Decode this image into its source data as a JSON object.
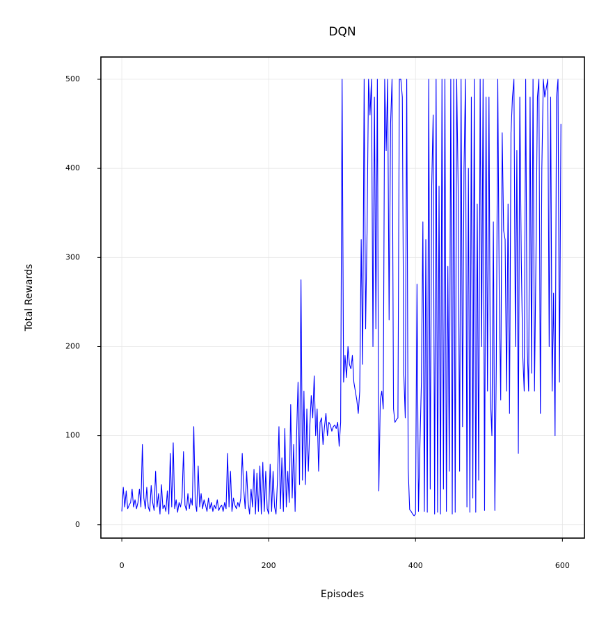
{
  "chart_data": {
    "type": "line",
    "title": "DQN",
    "x_label": "Episodes",
    "y_label": "Total Rewards",
    "color": "#0000ff",
    "grid": true,
    "xlim": [
      -28.5,
      630
    ],
    "ylim": [
      -15,
      525
    ],
    "xticks": [
      0,
      200,
      400,
      600
    ],
    "yticks": [
      0,
      100,
      200,
      300,
      400,
      500
    ],
    "x": [
      0,
      2,
      4,
      6,
      8,
      10,
      12,
      14,
      16,
      18,
      20,
      22,
      24,
      26,
      28,
      30,
      32,
      34,
      36,
      38,
      40,
      42,
      44,
      46,
      48,
      50,
      52,
      54,
      56,
      58,
      60,
      62,
      64,
      66,
      68,
      70,
      72,
      74,
      76,
      78,
      80,
      82,
      84,
      86,
      88,
      90,
      92,
      94,
      96,
      98,
      100,
      102,
      104,
      106,
      108,
      110,
      112,
      114,
      116,
      118,
      120,
      122,
      124,
      126,
      128,
      130,
      132,
      134,
      136,
      138,
      140,
      142,
      144,
      146,
      148,
      150,
      152,
      154,
      156,
      158,
      160,
      162,
      164,
      166,
      168,
      170,
      172,
      174,
      176,
      178,
      180,
      182,
      184,
      186,
      188,
      190,
      192,
      194,
      196,
      198,
      200,
      202,
      204,
      206,
      208,
      210,
      212,
      214,
      216,
      218,
      220,
      222,
      224,
      226,
      228,
      230,
      232,
      234,
      236,
      238,
      240,
      242,
      244,
      246,
      248,
      250,
      252,
      254,
      256,
      258,
      260,
      262,
      264,
      266,
      268,
      270,
      272,
      274,
      276,
      278,
      280,
      282,
      284,
      286,
      288,
      290,
      292,
      294,
      296,
      298,
      300,
      302,
      304,
      306,
      308,
      310,
      312,
      314,
      316,
      318,
      320,
      322,
      324,
      326,
      328,
      330,
      332,
      334,
      336,
      338,
      340,
      342,
      344,
      346,
      348,
      350,
      352,
      354,
      356,
      358,
      360,
      362,
      364,
      366,
      368,
      370,
      372,
      374,
      376,
      378,
      380,
      382,
      384,
      386,
      388,
      390,
      392,
      394,
      396,
      398,
      400,
      402,
      404,
      406,
      408,
      410,
      412,
      414,
      416,
      418,
      420,
      422,
      424,
      426,
      428,
      430,
      432,
      434,
      436,
      438,
      440,
      442,
      444,
      446,
      448,
      450,
      452,
      454,
      456,
      458,
      460,
      462,
      464,
      466,
      468,
      470,
      472,
      474,
      476,
      478,
      480,
      482,
      484,
      486,
      488,
      490,
      492,
      494,
      496,
      498,
      500,
      502,
      504,
      506,
      508,
      510,
      512,
      514,
      516,
      518,
      520,
      522,
      524,
      526,
      528,
      530,
      532,
      534,
      536,
      538,
      540,
      542,
      544,
      546,
      548,
      550,
      552,
      554,
      556,
      558,
      560,
      562,
      564,
      566,
      568,
      570,
      572,
      574,
      576,
      578,
      580,
      582,
      584,
      586,
      588,
      590,
      592,
      594,
      596,
      598
    ],
    "values": [
      15,
      42,
      20,
      38,
      18,
      22,
      25,
      40,
      20,
      28,
      18,
      25,
      40,
      20,
      90,
      30,
      18,
      42,
      20,
      15,
      44,
      25,
      16,
      60,
      20,
      35,
      12,
      45,
      18,
      22,
      15,
      38,
      12,
      80,
      20,
      92,
      18,
      28,
      14,
      25,
      20,
      30,
      82,
      22,
      16,
      35,
      18,
      30,
      22,
      110,
      25,
      15,
      66,
      20,
      35,
      18,
      28,
      22,
      15,
      30,
      18,
      25,
      15,
      22,
      18,
      28,
      16,
      20,
      22,
      15,
      25,
      18,
      80,
      20,
      60,
      15,
      30,
      22,
      18,
      25,
      20,
      30,
      80,
      40,
      18,
      60,
      25,
      12,
      40,
      20,
      62,
      12,
      58,
      15,
      66,
      12,
      70,
      15,
      60,
      18,
      12,
      68,
      15,
      60,
      20,
      12,
      50,
      110,
      18,
      75,
      15,
      108,
      20,
      60,
      25,
      135,
      30,
      90,
      15,
      100,
      160,
      45,
      275,
      50,
      150,
      45,
      130,
      60,
      110,
      145,
      120,
      167,
      100,
      130,
      60,
      115,
      120,
      90,
      110,
      125,
      100,
      115,
      112,
      105,
      110,
      112,
      108,
      115,
      88,
      115,
      500,
      160,
      190,
      165,
      200,
      180,
      175,
      190,
      160,
      150,
      140,
      125,
      150,
      320,
      180,
      500,
      220,
      330,
      500,
      460,
      500,
      200,
      480,
      220,
      500,
      38,
      140,
      150,
      130,
      500,
      420,
      500,
      230,
      450,
      500,
      130,
      115,
      118,
      120,
      500,
      500,
      480,
      170,
      120,
      500,
      63,
      17,
      15,
      12,
      10,
      12,
      270,
      15,
      90,
      160,
      340,
      15,
      320,
      14,
      500,
      40,
      380,
      460,
      12,
      500,
      14,
      380,
      12,
      500,
      40,
      500,
      15,
      290,
      60,
      500,
      12,
      500,
      14,
      500,
      380,
      60,
      500,
      110,
      400,
      500,
      20,
      400,
      14,
      480,
      30,
      500,
      14,
      360,
      50,
      500,
      200,
      500,
      16,
      480,
      150,
      480,
      140,
      100,
      340,
      16,
      180,
      500,
      260,
      140,
      440,
      330,
      320,
      150,
      360,
      125,
      440,
      480,
      500,
      200,
      420,
      80,
      480,
      300,
      190,
      150,
      500,
      200,
      150,
      480,
      170,
      500,
      150,
      300,
      480,
      500,
      125,
      400,
      500,
      480,
      490,
      500,
      200,
      480,
      150,
      260,
      100,
      480,
      500,
      160,
      450
    ]
  }
}
